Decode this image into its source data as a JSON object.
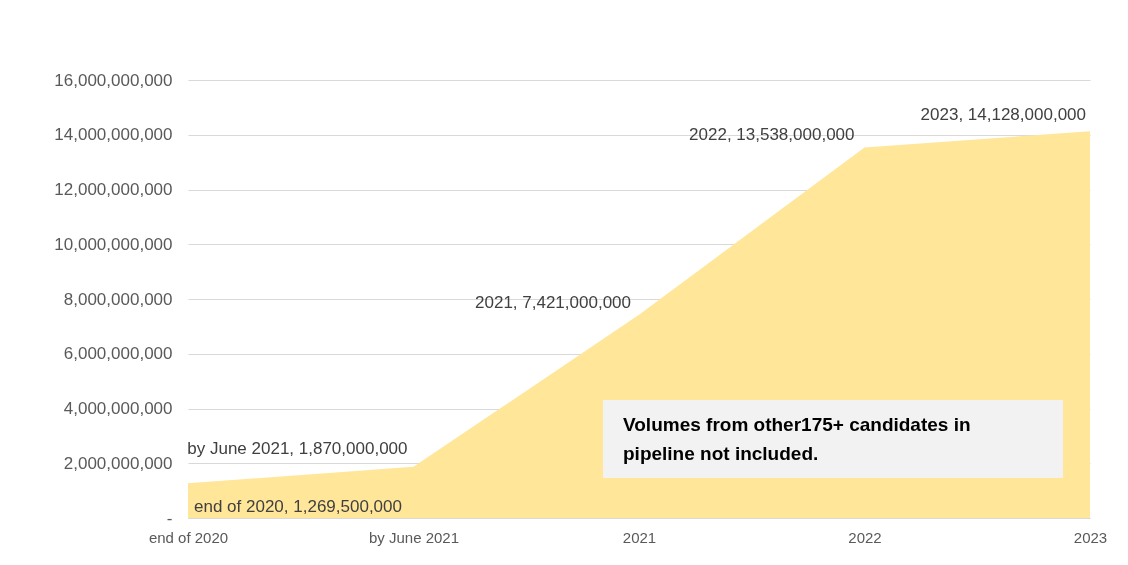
{
  "chart_data": {
    "type": "area",
    "categories": [
      "end of 2020",
      "by June 2021",
      "2021",
      "2022",
      "2023"
    ],
    "series": [
      {
        "color": "#ffe699",
        "values": [
          1269500000,
          1870000000,
          7421000000,
          13538000000,
          14128000000
        ]
      }
    ],
    "ylim": [
      0,
      16000000000
    ],
    "yticks": [
      {
        "value": 0,
        "label": "-"
      },
      {
        "value": 2000000000,
        "label": "2,000,000,000"
      },
      {
        "value": 4000000000,
        "label": "4,000,000,000"
      },
      {
        "value": 6000000000,
        "label": "6,000,000,000"
      },
      {
        "value": 8000000000,
        "label": "8,000,000,000"
      },
      {
        "value": 10000000000,
        "label": "10,000,000,000"
      },
      {
        "value": 12000000000,
        "label": "12,000,000,000"
      },
      {
        "value": 14000000000,
        "label": "14,000,000,000"
      },
      {
        "value": 16000000000,
        "label": "16,000,000,000"
      }
    ],
    "grid": "y",
    "annotations": [
      {
        "text": "end of 2020, 1,269,500,000",
        "x": "end of 2020",
        "y": 1269500000
      },
      {
        "text": "by June 2021, 1,870,000,000",
        "x": "by June 2021",
        "y": 1870000000
      },
      {
        "text": "2021, 7,421,000,000",
        "x": "2021",
        "y": 7421000000
      },
      {
        "text": "2022, 13,538,000,000",
        "x": "2022",
        "y": 13538000000
      },
      {
        "text": "2023, 14,128,000,000",
        "x": "2023",
        "y": 14128000000
      },
      "Volumes from other175+ candidates in pipeline not included."
    ]
  }
}
